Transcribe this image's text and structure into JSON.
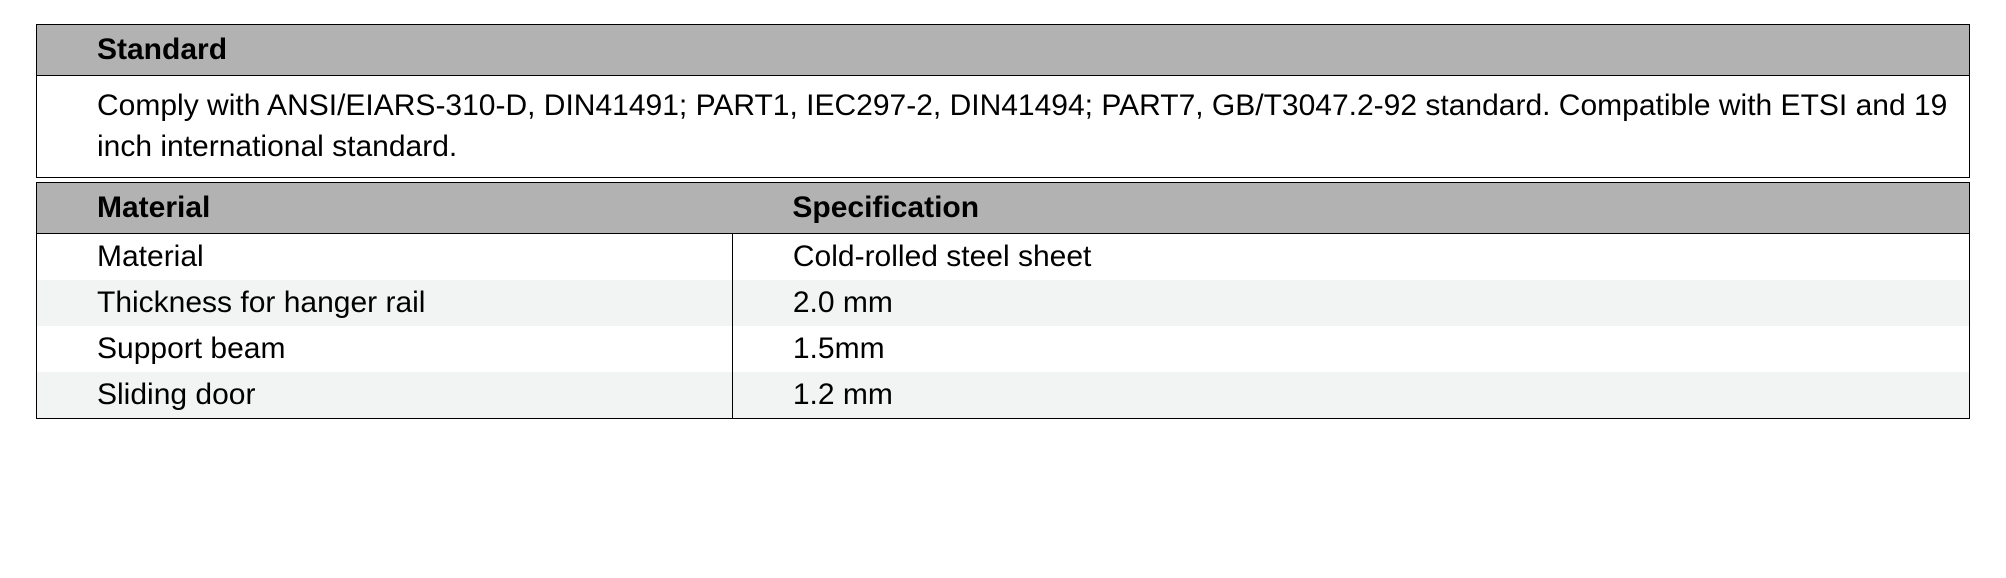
{
  "colors": {
    "header_bg": "#b2b2b2",
    "row_alt_bg": "#f1f4f2",
    "row_bg": "#ffffff",
    "text": "#000000",
    "border": "#000000"
  },
  "typography": {
    "font_family": "Futura / Century Gothic style",
    "header_fontsize_pt": 22,
    "body_fontsize_pt": 22,
    "header_weight": 700,
    "body_weight": 400
  },
  "standard_table": {
    "header": "Standard",
    "body": "Comply with ANSI/EIARS-310-D, DIN41491; PART1, IEC297-2, DIN41494; PART7, GB/T3047.2-92 standard. Compatible with ETSI and 19 inch international standard."
  },
  "spec_table": {
    "columns": [
      "Material",
      "Specification"
    ],
    "column_widths_pct": [
      36,
      64
    ],
    "rows": [
      {
        "material": "Material",
        "spec": "Cold-rolled steel sheet",
        "bg": "#ffffff"
      },
      {
        "material": "Thickness for hanger rail",
        "spec": "2.0 mm",
        "bg": "#f1f4f2"
      },
      {
        "material": "Support beam",
        "spec": "1.5mm",
        "bg": "#ffffff"
      },
      {
        "material": "Sliding door",
        "spec": "1.2 mm",
        "bg": "#f1f4f2"
      }
    ]
  }
}
